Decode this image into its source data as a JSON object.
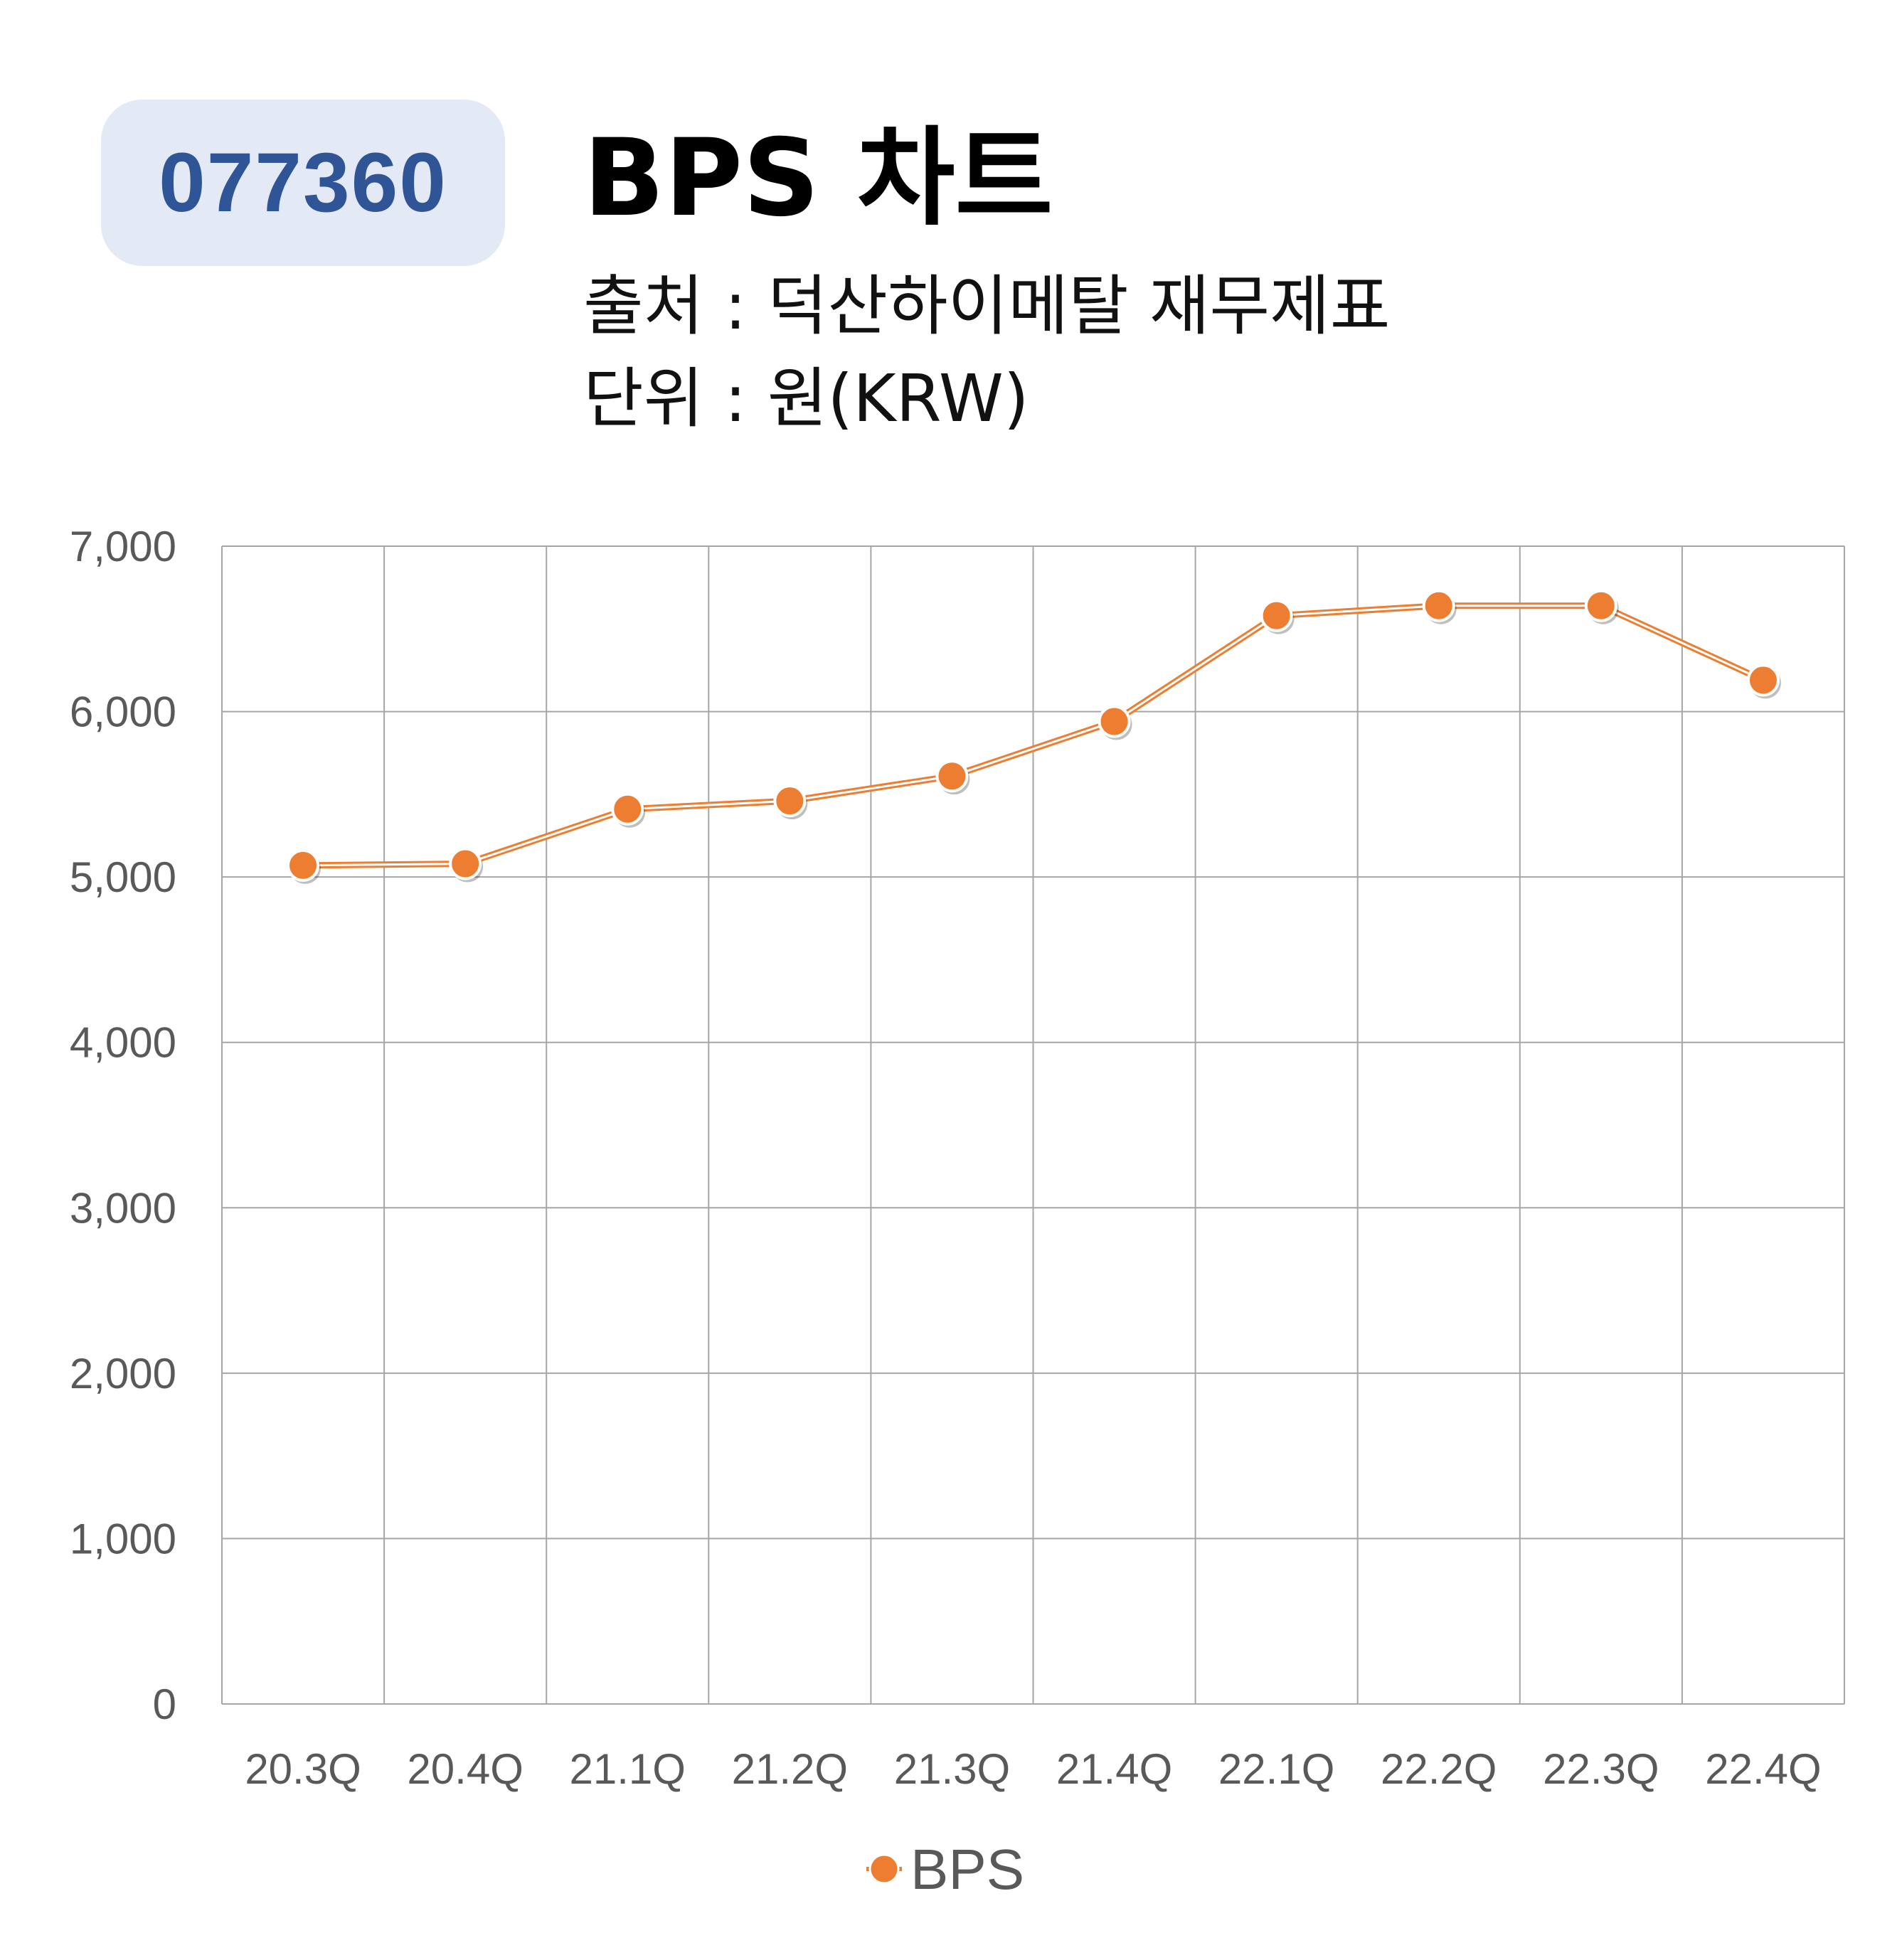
{
  "header": {
    "code": "077360",
    "title": "BPS 차트",
    "source": "출처 : 덕산하이메탈 재무제표",
    "unit": "단위 : 원(KRW)"
  },
  "colors": {
    "series": "#ed7d31",
    "badge_bg": "#e3e9f5",
    "badge_text": "#2f5597",
    "grid": "#a6a6a6"
  },
  "chart_data": {
    "type": "line",
    "categories": [
      "20.3Q",
      "20.4Q",
      "21.1Q",
      "21.2Q",
      "21.3Q",
      "21.4Q",
      "22.1Q",
      "22.2Q",
      "22.3Q",
      "22.4Q"
    ],
    "series": [
      {
        "name": "BPS",
        "values": [
          5070,
          5080,
          5410,
          5460,
          5610,
          5940,
          6580,
          6640,
          6640,
          6190
        ]
      }
    ],
    "ylim": [
      0,
      7000
    ],
    "yticks": [
      0,
      1000,
      2000,
      3000,
      4000,
      5000,
      6000,
      7000
    ],
    "ytick_labels": [
      "0",
      "1,000",
      "2,000",
      "3,000",
      "4,000",
      "5,000",
      "6,000",
      "7,000"
    ],
    "grid": true,
    "legend_position": "bottom",
    "xlabel": "",
    "ylabel": ""
  }
}
